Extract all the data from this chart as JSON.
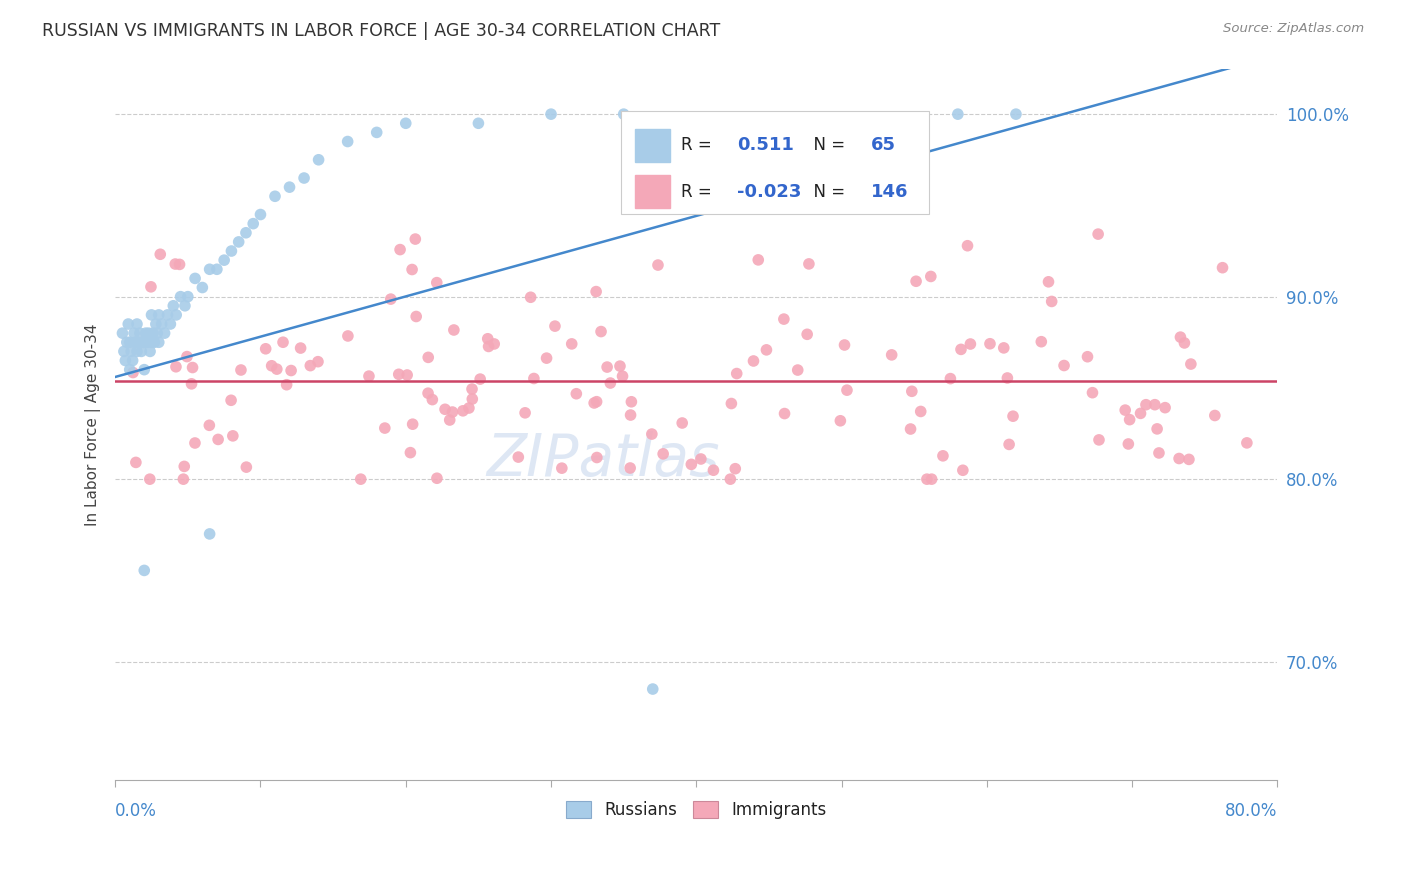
{
  "title": "RUSSIAN VS IMMIGRANTS IN LABOR FORCE | AGE 30-34 CORRELATION CHART",
  "source": "Source: ZipAtlas.com",
  "ylabel": "In Labor Force | Age 30-34",
  "xlim": [
    0.0,
    0.8
  ],
  "ylim": [
    0.635,
    1.025
  ],
  "R_russian": 0.511,
  "N_russian": 65,
  "R_immigrant": -0.023,
  "N_immigrant": 146,
  "russian_color": "#a8cce8",
  "immigrant_color": "#f4a8b8",
  "russian_line_color": "#4488cc",
  "immigrant_line_color": "#cc4466",
  "legend_label_color": "#222222",
  "legend_value_color": "#3366cc",
  "background_color": "#ffffff",
  "grid_color": "#cccccc",
  "title_color": "#333333",
  "axis_tick_color": "#4488cc",
  "watermark": "ZIPatlas",
  "watermark_color": "#c8d8ee"
}
